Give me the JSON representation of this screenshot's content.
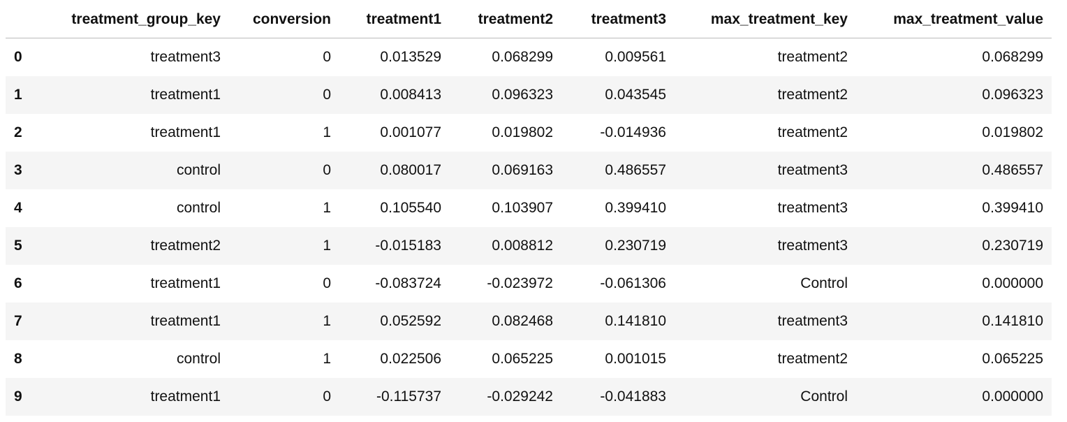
{
  "table": {
    "columns": [
      "treatment_group_key",
      "conversion",
      "treatment1",
      "treatment2",
      "treatment3",
      "max_treatment_key",
      "max_treatment_value"
    ],
    "rows": [
      [
        "0",
        "treatment3",
        "0",
        "0.013529",
        "0.068299",
        "0.009561",
        "treatment2",
        "0.068299"
      ],
      [
        "1",
        "treatment1",
        "0",
        "0.008413",
        "0.096323",
        "0.043545",
        "treatment2",
        "0.096323"
      ],
      [
        "2",
        "treatment1",
        "1",
        "0.001077",
        "0.019802",
        "-0.014936",
        "treatment2",
        "0.019802"
      ],
      [
        "3",
        "control",
        "0",
        "0.080017",
        "0.069163",
        "0.486557",
        "treatment3",
        "0.486557"
      ],
      [
        "4",
        "control",
        "1",
        "0.105540",
        "0.103907",
        "0.399410",
        "treatment3",
        "0.399410"
      ],
      [
        "5",
        "treatment2",
        "1",
        "-0.015183",
        "0.008812",
        "0.230719",
        "treatment3",
        "0.230719"
      ],
      [
        "6",
        "treatment1",
        "0",
        "-0.083724",
        "-0.023972",
        "-0.061306",
        "Control",
        "0.000000"
      ],
      [
        "7",
        "treatment1",
        "1",
        "0.052592",
        "0.082468",
        "0.141810",
        "treatment3",
        "0.141810"
      ],
      [
        "8",
        "control",
        "1",
        "0.022506",
        "0.065225",
        "0.001015",
        "treatment2",
        "0.065225"
      ],
      [
        "9",
        "treatment1",
        "0",
        "-0.115737",
        "-0.029242",
        "-0.041883",
        "Control",
        "0.000000"
      ]
    ]
  }
}
